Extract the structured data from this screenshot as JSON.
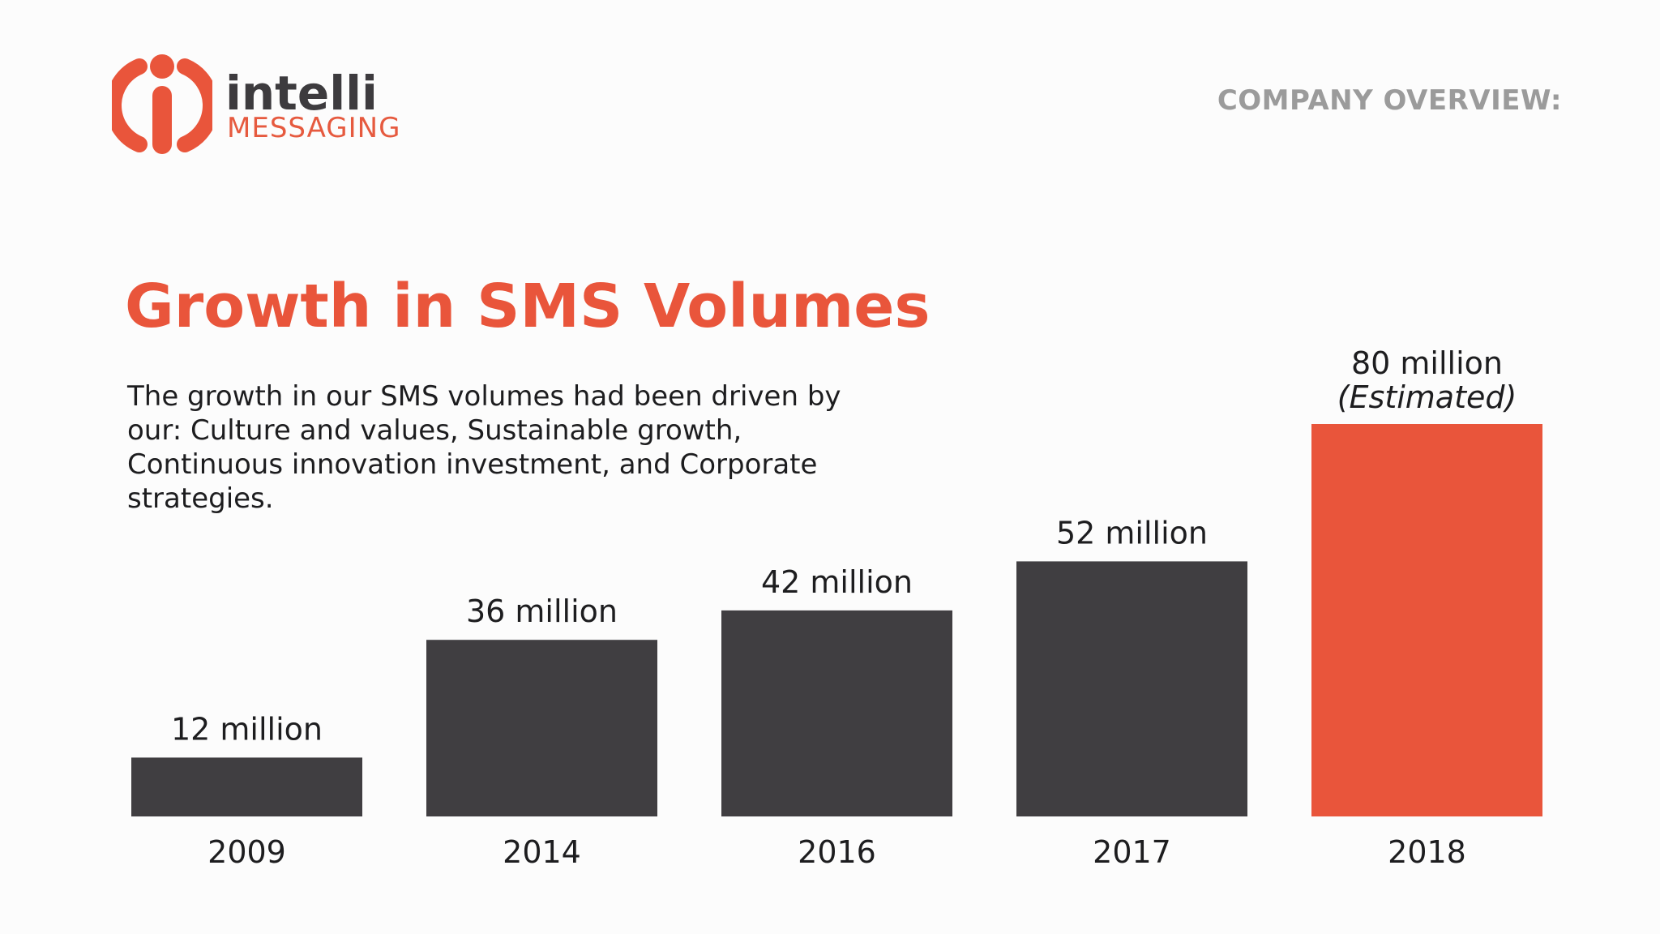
{
  "logo": {
    "word": "intelli",
    "sub": "MESSAGING",
    "mark_icon": "info-i-icon",
    "color_mark": "#e9553b",
    "color_word": "#3d3b3e"
  },
  "header": {
    "label": "COMPANY OVERVIEW:"
  },
  "title": "Growth in SMS Volumes",
  "description": "The growth in our SMS volumes had been driven by our: Culture and values, Sustainable growth, Continuous innovation investment, and Corporate strategies.",
  "colors": {
    "accent": "#e9553b",
    "bar": "#403e41",
    "background": "#fcfcfc",
    "text": "#1d1d1f",
    "header": "#9b9b9b"
  },
  "chart_data": {
    "type": "bar",
    "categories": [
      "2009",
      "2014",
      "2016",
      "2017",
      "2018"
    ],
    "values": [
      12,
      36,
      42,
      52,
      80
    ],
    "value_labels": [
      "12 million",
      "36 million",
      "42 million",
      "52 million",
      "80 million"
    ],
    "notes": [
      "",
      "",
      "",
      "",
      "(Estimated)"
    ],
    "highlight_index": 4,
    "ylim": [
      0,
      80
    ],
    "grid": false,
    "title": "",
    "xlabel": "",
    "ylabel": ""
  }
}
